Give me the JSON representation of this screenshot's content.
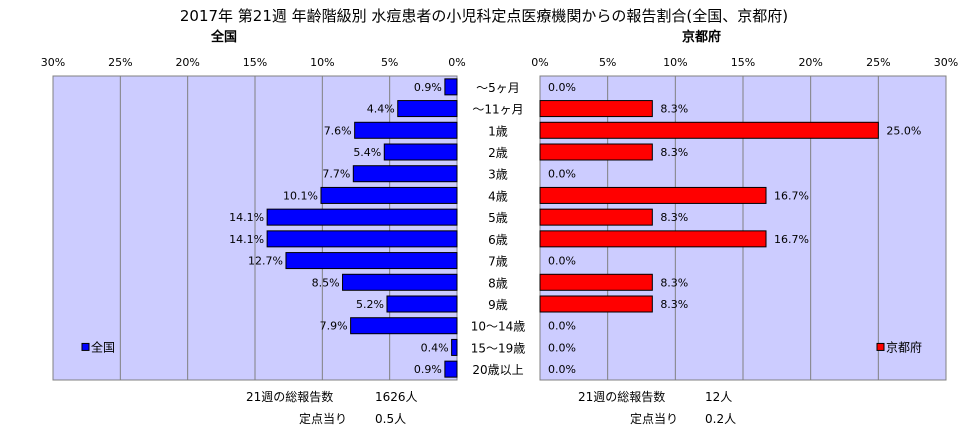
{
  "title": "2017年 第21週 年齢階級別 水痘患者の小児科定点医療機関からの報告割合(全国、京都府)",
  "colors": {
    "plot_bg": "#ccccff",
    "national_bar": "#0000ff",
    "kyoto_bar": "#ff0000",
    "bar_edge": "#000000",
    "grid": "#808080"
  },
  "chart_data": [
    {
      "type": "bar",
      "orientation": "horizontal",
      "direction": "right-to-left",
      "title": "全国",
      "legend": "全国",
      "legend_position": "bottom-left",
      "xlim": [
        0,
        30
      ],
      "xticks": [
        "30%",
        "25%",
        "20%",
        "15%",
        "10%",
        "5%",
        "0%"
      ],
      "grid": true,
      "categories": [
        "～5ヶ月",
        "～11ヶ月",
        "1歳",
        "2歳",
        "3歳",
        "4歳",
        "5歳",
        "6歳",
        "7歳",
        "8歳",
        "9歳",
        "10～14歳",
        "15～19歳",
        "20歳以上"
      ],
      "series": [
        {
          "name": "全国",
          "values": [
            0.9,
            4.4,
            7.6,
            5.4,
            7.7,
            10.1,
            14.1,
            14.1,
            12.7,
            8.5,
            5.2,
            7.9,
            0.4,
            0.9
          ],
          "labels": [
            "0.9%",
            "4.4%",
            "7.6%",
            "5.4%",
            "7.7%",
            "10.1%",
            "14.1%",
            "14.1%",
            "12.7%",
            "8.5%",
            "5.2%",
            "7.9%",
            "0.4%",
            "0.9%"
          ]
        }
      ]
    },
    {
      "type": "bar",
      "orientation": "horizontal",
      "direction": "left-to-right",
      "title": "京都府",
      "legend": "京都府",
      "legend_position": "bottom-right",
      "xlim": [
        0,
        30
      ],
      "xticks": [
        "0%",
        "5%",
        "10%",
        "15%",
        "20%",
        "25%",
        "30%"
      ],
      "grid": true,
      "categories": [
        "～5ヶ月",
        "～11ヶ月",
        "1歳",
        "2歳",
        "3歳",
        "4歳",
        "5歳",
        "6歳",
        "7歳",
        "8歳",
        "9歳",
        "10～14歳",
        "15～19歳",
        "20歳以上"
      ],
      "series": [
        {
          "name": "京都府",
          "values": [
            0.0,
            8.3,
            25.0,
            8.3,
            0.0,
            16.7,
            8.3,
            16.7,
            0.0,
            8.3,
            8.3,
            0.0,
            0.0,
            0.0
          ],
          "labels": [
            "0.0%",
            "8.3%",
            "25.0%",
            "8.3%",
            "0.0%",
            "16.7%",
            "8.3%",
            "16.7%",
            "0.0%",
            "8.3%",
            "8.3%",
            "0.0%",
            "0.0%",
            "0.0%"
          ]
        }
      ]
    }
  ],
  "footer": {
    "national_total_label": "21週の総報告数",
    "national_total_value": "1626人",
    "national_per_label": "定点当り",
    "national_per_value": "0.5人",
    "kyoto_total_label": "21週の総報告数",
    "kyoto_total_value": "12人",
    "kyoto_per_label": "定点当り",
    "kyoto_per_value": "0.2人"
  }
}
